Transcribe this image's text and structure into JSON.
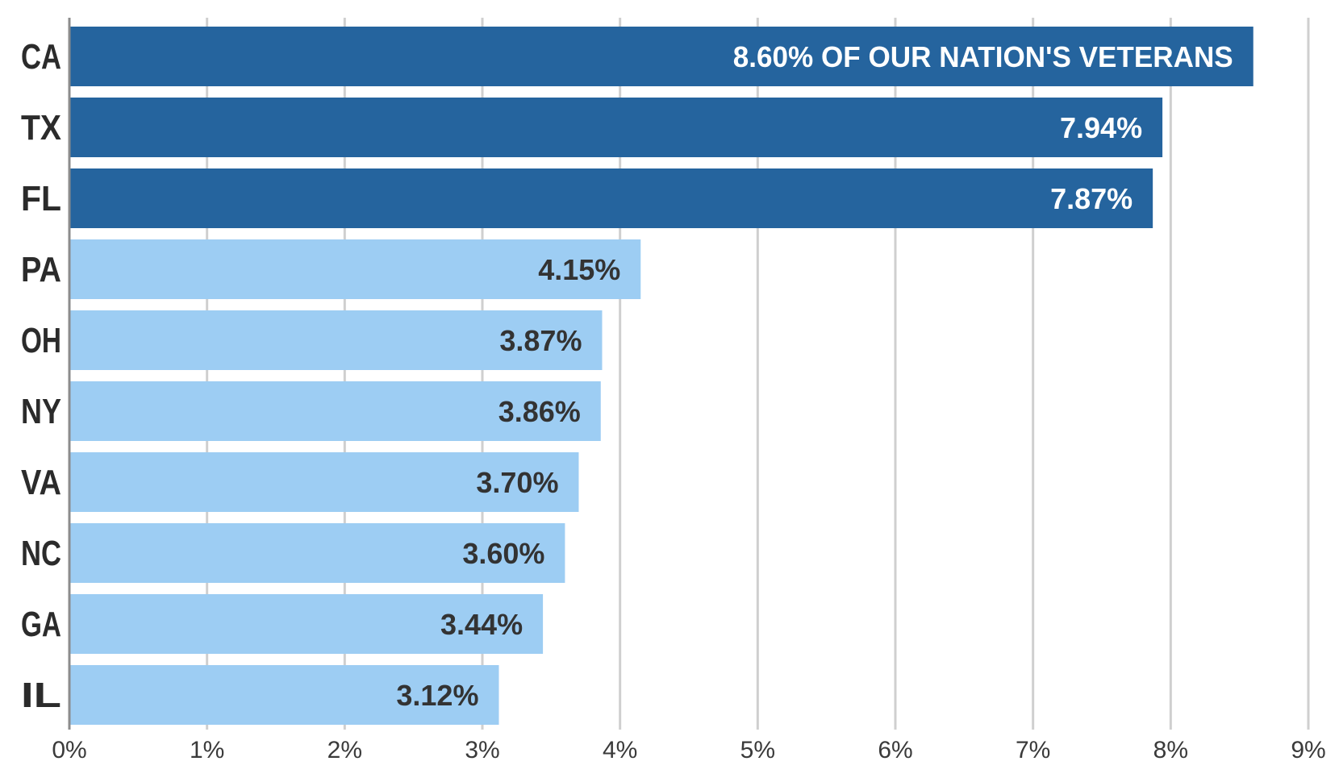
{
  "chart_data": {
    "type": "bar",
    "orientation": "horizontal",
    "categories": [
      "CA",
      "TX",
      "FL",
      "PA",
      "OH",
      "NY",
      "VA",
      "NC",
      "GA",
      "IL"
    ],
    "values": [
      8.6,
      7.94,
      7.87,
      4.15,
      3.87,
      3.86,
      3.7,
      3.6,
      3.44,
      3.12
    ],
    "data_labels": [
      "8.60% OF OUR NATION'S VETERANS",
      "7.94%",
      "7.87%",
      "4.15%",
      "3.87%",
      "3.86%",
      "3.70%",
      "3.60%",
      "3.44%",
      "3.12%"
    ],
    "x_ticks": [
      "0%",
      "1%",
      "2%",
      "3%",
      "4%",
      "5%",
      "6%",
      "7%",
      "8%",
      "9%"
    ],
    "xlim": [
      0,
      9
    ],
    "grid": true,
    "colors": {
      "highlight_bar": "#25649e",
      "bar": "#9dcdf3",
      "highlight_label": "#ffffff",
      "label": "#333333"
    },
    "highlight_count": 3
  }
}
